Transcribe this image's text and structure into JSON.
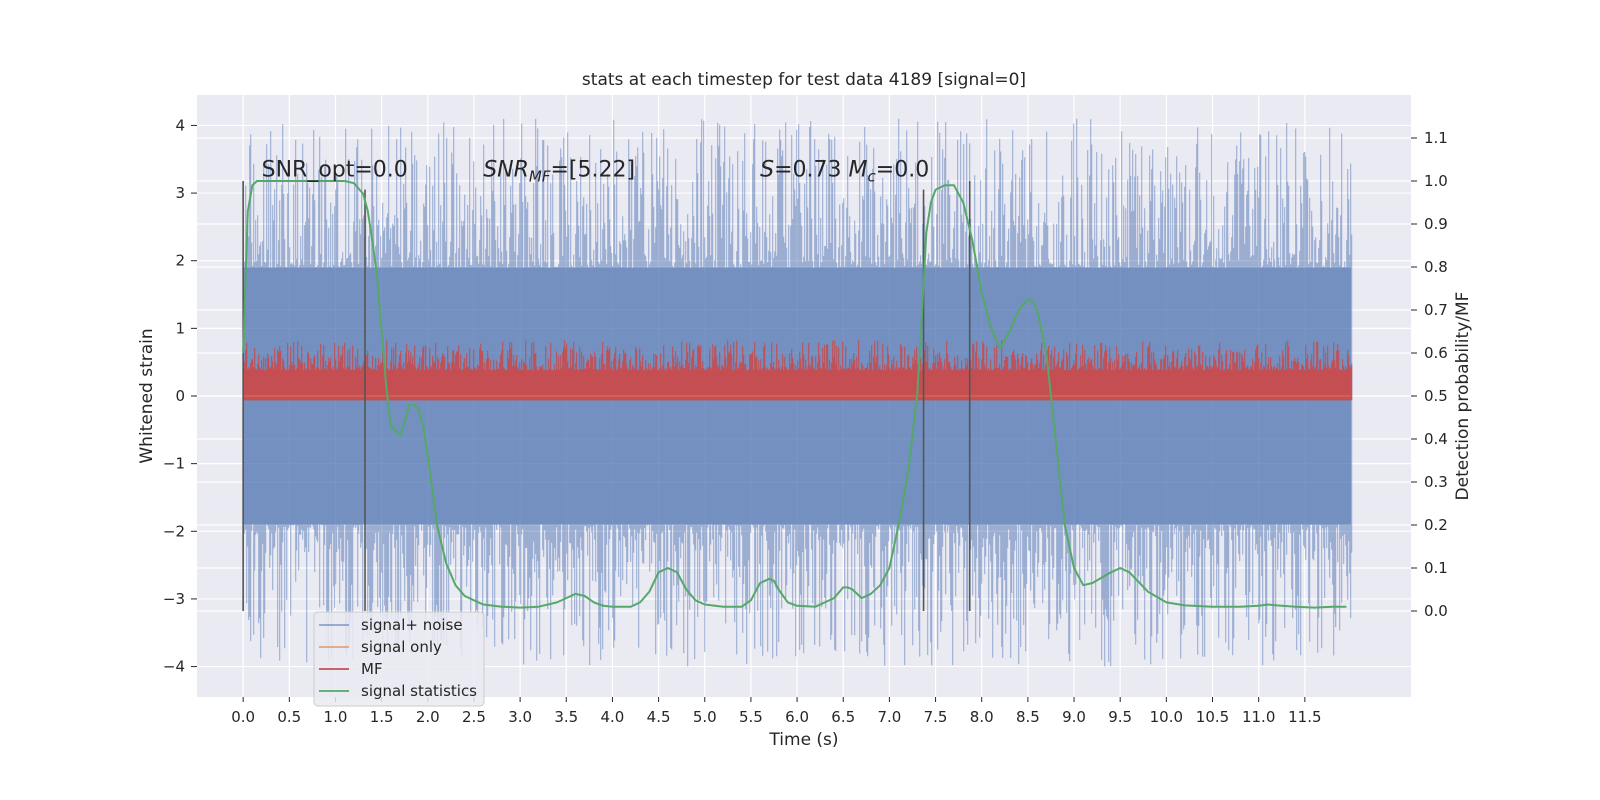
{
  "chart_data": {
    "type": "line",
    "title": "stats at each timestep for test data 4189 [signal=0]",
    "xlabel": "Time (s)",
    "ylabel": "Whitened strain",
    "y2label": "Detection probability/MF",
    "xlim": [
      -0.5,
      12.65
    ],
    "ylim": [
      -4.45,
      4.45
    ],
    "y2lim": [
      -0.2,
      1.2
    ],
    "xticks": [
      0.0,
      0.5,
      1.0,
      1.5,
      2.0,
      2.5,
      3.0,
      3.5,
      4.0,
      4.5,
      5.0,
      5.5,
      6.0,
      6.5,
      7.0,
      7.5,
      8.0,
      8.5,
      9.0,
      9.5,
      10.0,
      10.5,
      11.0,
      11.5
    ],
    "xtick_labels": [
      "0.0",
      "0.5",
      "1.0",
      "1.5",
      "2.0",
      "2.5",
      "3.0",
      "3.5",
      "4.0",
      "4.5",
      "5.0",
      "5.5",
      "6.0",
      "6.5",
      "7.0",
      "7.5",
      "8.0",
      "8.5",
      "9.0",
      "9.5",
      "10.0",
      "10.5",
      "11.0",
      "11.5"
    ],
    "yticks": [
      -4,
      -3,
      -2,
      -1,
      0,
      1,
      2,
      3,
      4
    ],
    "ytick_labels": [
      "−4",
      "−3",
      "−2",
      "−1",
      "0",
      "1",
      "2",
      "3",
      "4"
    ],
    "y2ticks": [
      0.0,
      0.1,
      0.2,
      0.3,
      0.4,
      0.5,
      0.6,
      0.7,
      0.8,
      0.9,
      1.0,
      1.1
    ],
    "y2tick_labels": [
      "0.0",
      "0.1",
      "0.2",
      "0.3",
      "0.4",
      "0.5",
      "0.6",
      "0.7",
      "0.8",
      "0.9",
      "1.0",
      "1.1"
    ],
    "grid": true,
    "legend_position": "lower-left",
    "series": [
      {
        "name": "signal+ noise",
        "color": "#4c72b0",
        "axis": "left",
        "kind": "noise-band",
        "x_range": [
          0.0,
          12.0
        ],
        "core_range": [
          -1.9,
          1.9
        ],
        "peak_range": [
          -4.0,
          4.1
        ]
      },
      {
        "name": "signal only",
        "color": "#dd8452",
        "axis": "left",
        "kind": "flat",
        "x_range": [
          0.0,
          12.0
        ],
        "value": 0.0
      },
      {
        "name": "MF",
        "color": "#c44e52",
        "axis": "right",
        "kind": "noise-band",
        "x_range": [
          0.0,
          12.0
        ],
        "core_range": [
          0.49,
          0.56
        ],
        "peak_range": [
          0.49,
          0.63
        ]
      },
      {
        "name": "signal statistics",
        "color": "#55a868",
        "axis": "right",
        "kind": "line",
        "x": [
          0.0,
          0.05,
          0.1,
          0.15,
          0.2,
          0.4,
          0.6,
          0.8,
          1.0,
          1.1,
          1.2,
          1.3,
          1.35,
          1.4,
          1.45,
          1.5,
          1.55,
          1.6,
          1.65,
          1.7,
          1.75,
          1.8,
          1.85,
          1.9,
          1.95,
          2.0,
          2.05,
          2.1,
          2.2,
          2.3,
          2.4,
          2.5,
          2.6,
          2.8,
          3.0,
          3.2,
          3.4,
          3.5,
          3.6,
          3.7,
          3.8,
          3.9,
          4.0,
          4.2,
          4.3,
          4.4,
          4.5,
          4.6,
          4.7,
          4.8,
          4.9,
          5.0,
          5.2,
          5.4,
          5.5,
          5.6,
          5.7,
          5.75,
          5.8,
          5.9,
          6.0,
          6.2,
          6.4,
          6.5,
          6.55,
          6.6,
          6.7,
          6.8,
          6.9,
          7.0,
          7.1,
          7.2,
          7.3,
          7.35,
          7.4,
          7.45,
          7.5,
          7.6,
          7.7,
          7.8,
          7.9,
          8.0,
          8.1,
          8.2,
          8.3,
          8.4,
          8.5,
          8.55,
          8.6,
          8.7,
          8.8,
          8.9,
          9.0,
          9.1,
          9.2,
          9.4,
          9.5,
          9.6,
          9.8,
          10.0,
          10.2,
          10.5,
          10.8,
          11.0,
          11.1,
          11.2,
          11.4,
          11.6,
          11.8,
          11.95
        ],
        "values": [
          0.6,
          0.93,
          0.99,
          1.0,
          1.0,
          1.0,
          1.0,
          1.0,
          1.0,
          1.0,
          0.995,
          0.97,
          0.93,
          0.86,
          0.78,
          0.65,
          0.52,
          0.43,
          0.42,
          0.41,
          0.44,
          0.48,
          0.48,
          0.47,
          0.43,
          0.36,
          0.28,
          0.2,
          0.11,
          0.06,
          0.035,
          0.025,
          0.015,
          0.01,
          0.008,
          0.01,
          0.02,
          0.03,
          0.04,
          0.035,
          0.02,
          0.012,
          0.01,
          0.01,
          0.02,
          0.045,
          0.09,
          0.1,
          0.09,
          0.05,
          0.025,
          0.015,
          0.01,
          0.01,
          0.025,
          0.065,
          0.075,
          0.07,
          0.05,
          0.02,
          0.012,
          0.01,
          0.03,
          0.055,
          0.055,
          0.05,
          0.03,
          0.04,
          0.06,
          0.1,
          0.2,
          0.32,
          0.5,
          0.68,
          0.88,
          0.95,
          0.98,
          0.99,
          0.99,
          0.95,
          0.86,
          0.74,
          0.66,
          0.61,
          0.65,
          0.7,
          0.725,
          0.72,
          0.7,
          0.6,
          0.4,
          0.2,
          0.1,
          0.06,
          0.065,
          0.09,
          0.1,
          0.09,
          0.045,
          0.02,
          0.013,
          0.01,
          0.01,
          0.012,
          0.015,
          0.013,
          0.01,
          0.008,
          0.01,
          0.01
        ]
      }
    ],
    "markers": [
      {
        "x": 0.0,
        "y2_range": [
          0.0,
          1.0
        ]
      },
      {
        "x": 1.32,
        "y2_range": [
          0.0,
          0.98
        ]
      },
      {
        "x": 7.37,
        "y2_range": [
          0.0,
          0.98
        ]
      },
      {
        "x": 7.87,
        "y2_range": [
          0.0,
          1.0
        ]
      }
    ],
    "annotations": [
      {
        "x": 0.2,
        "y2": 1.01,
        "text": "SNR_opt=0.0",
        "parts": [
          {
            "t": "SNR_opt=0.0"
          }
        ]
      },
      {
        "x": 2.6,
        "y2": 1.01,
        "text": "SNR_MF=[5.22]",
        "parts": [
          {
            "t": "SNR",
            "i": true
          },
          {
            "t": "MF",
            "i": true,
            "sub": true
          },
          {
            "t": "=[5.22]"
          }
        ]
      },
      {
        "x": 5.6,
        "y2": 1.01,
        "text": "S=0.73   M_c=0.0",
        "parts": [
          {
            "t": "S",
            "i": true
          },
          {
            "t": "=0.73   "
          },
          {
            "t": "M",
            "i": true
          },
          {
            "t": "c",
            "i": true,
            "sub": true
          },
          {
            "t": "=0.0"
          }
        ]
      }
    ]
  }
}
